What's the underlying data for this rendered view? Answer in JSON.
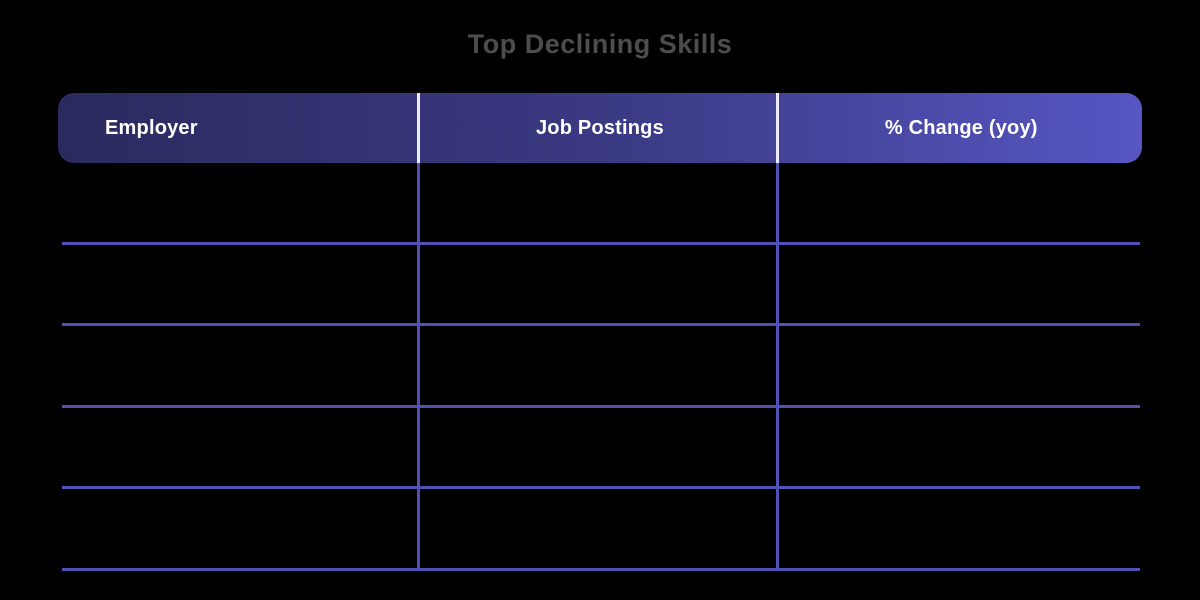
{
  "title": "Top Declining Skills",
  "colors": {
    "background": "#000000",
    "title_text": "#4d4d4d",
    "header_gradient_from": "#2b2a5e",
    "header_gradient_to": "#5756c3",
    "header_text": "#ffffff",
    "header_divider": "#ecebf9",
    "grid_line": "#5150b5"
  },
  "table": {
    "columns": [
      {
        "id": "employer",
        "label": "Employer",
        "align": "left"
      },
      {
        "id": "job_postings",
        "label": "Job Postings",
        "align": "center"
      },
      {
        "id": "pct_change",
        "label": "% Change (yoy)",
        "align": "center"
      }
    ],
    "rows": [
      {
        "employer": "",
        "job_postings": "",
        "pct_change": ""
      },
      {
        "employer": "",
        "job_postings": "",
        "pct_change": ""
      },
      {
        "employer": "",
        "job_postings": "",
        "pct_change": ""
      },
      {
        "employer": "",
        "job_postings": "",
        "pct_change": ""
      },
      {
        "employer": "",
        "job_postings": "",
        "pct_change": ""
      }
    ]
  },
  "chart_data": {
    "type": "table",
    "title": "Top Declining Skills",
    "columns": [
      "Employer",
      "Job Postings",
      "% Change (yoy)"
    ],
    "rows": [
      [
        "",
        "",
        ""
      ],
      [
        "",
        "",
        ""
      ],
      [
        "",
        "",
        ""
      ],
      [
        "",
        "",
        ""
      ],
      [
        "",
        "",
        ""
      ]
    ],
    "layout": {
      "header_style": "gradient",
      "body_rows_visible": 5,
      "grid": "on"
    }
  }
}
